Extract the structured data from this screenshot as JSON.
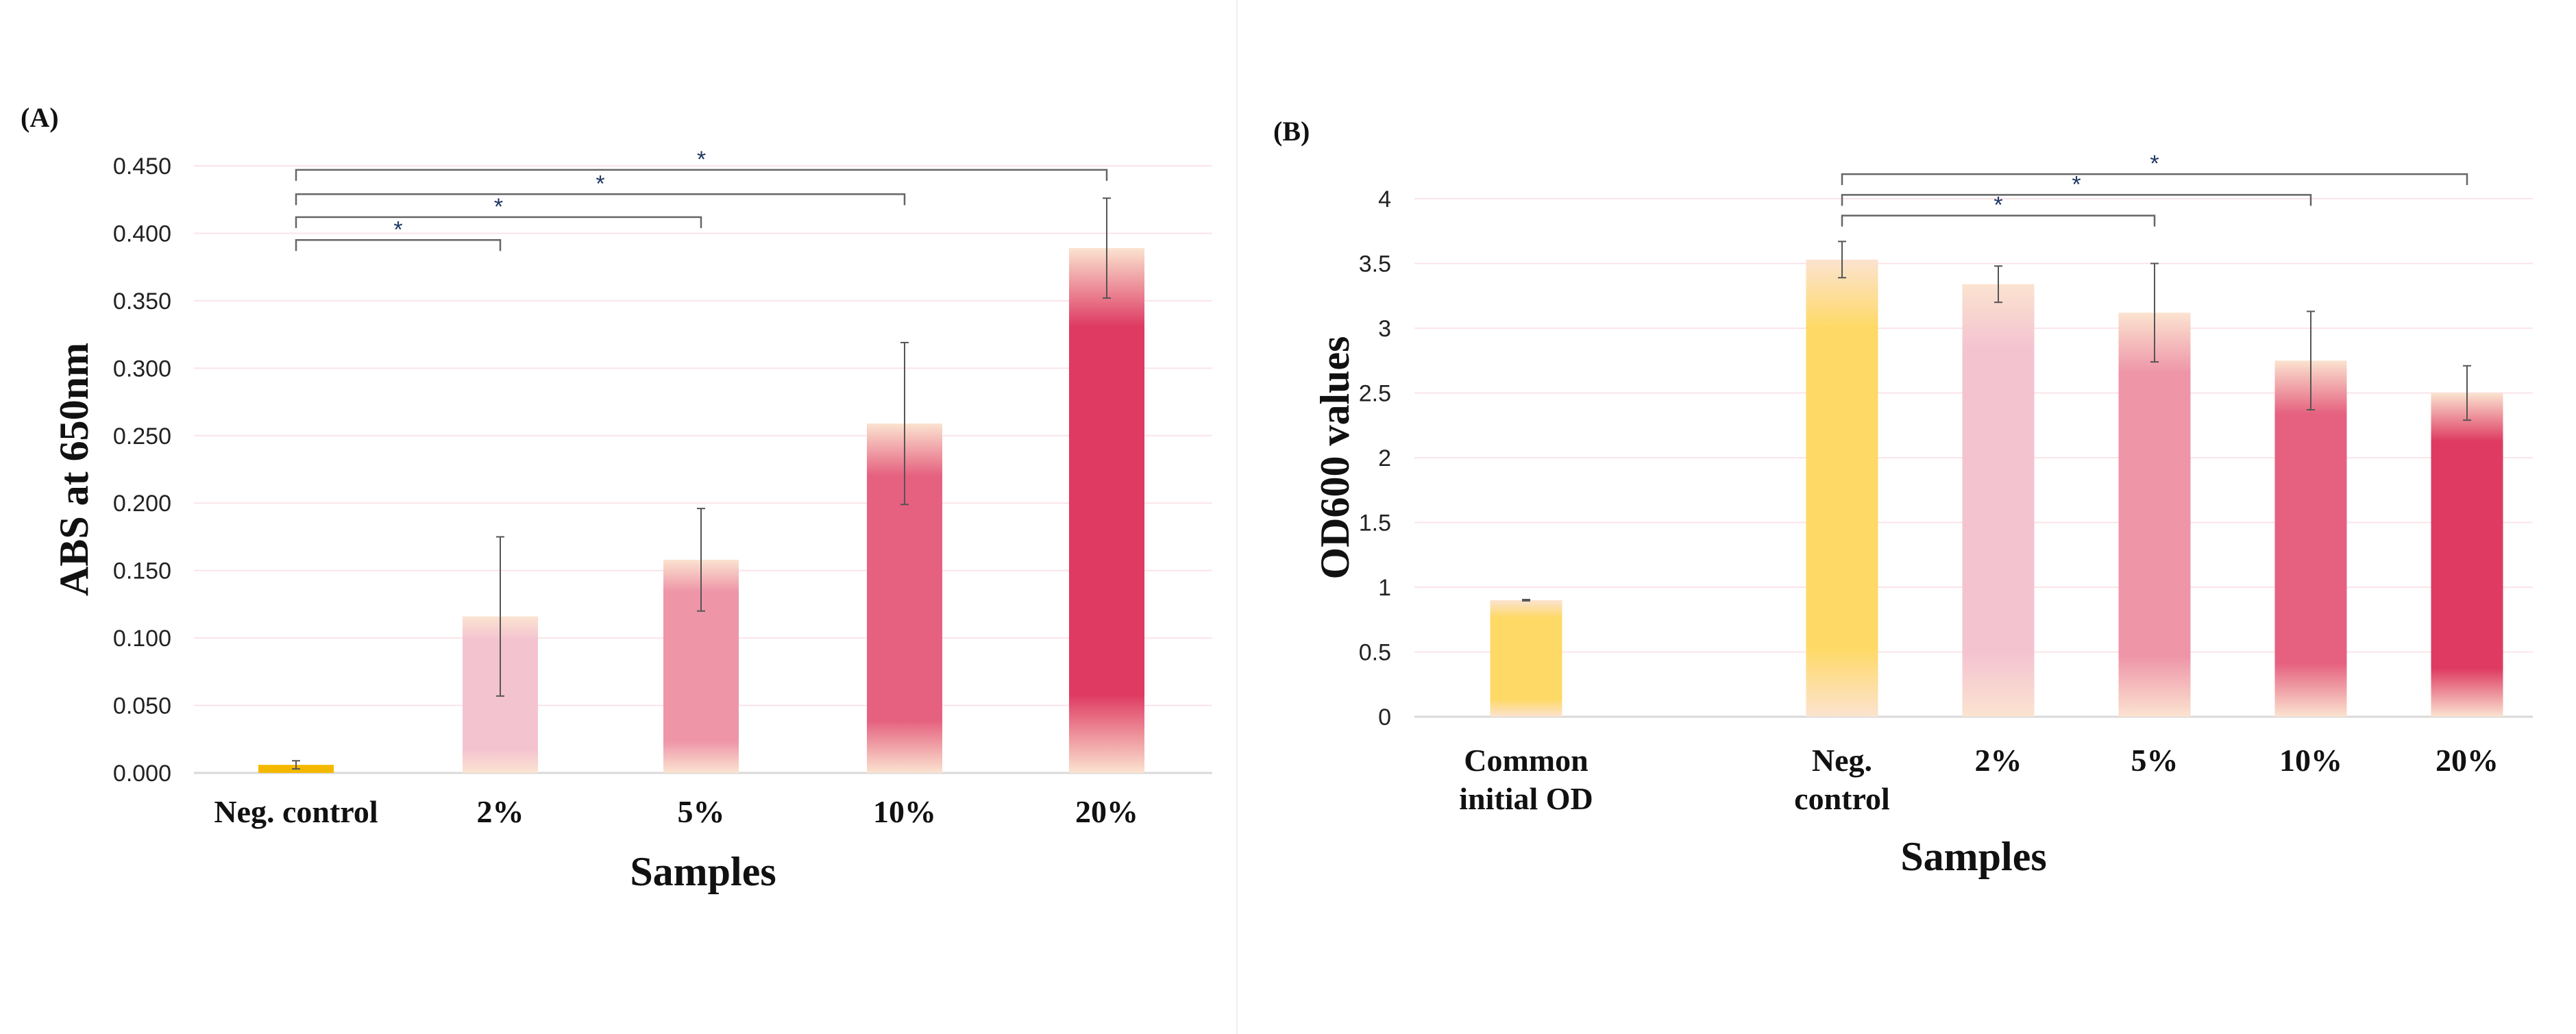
{
  "chart_data": [
    {
      "type": "bar",
      "panel_label": "(A)",
      "title": "",
      "xlabel": "Samples",
      "ylabel": "ABS at 650nm",
      "ylim": [
        0,
        0.45
      ],
      "yticks": [
        "0.000",
        "0.050",
        "0.100",
        "0.150",
        "0.200",
        "0.250",
        "0.300",
        "0.350",
        "0.400",
        "0.450"
      ],
      "categories": [
        [
          "Neg. control"
        ],
        [
          "2%"
        ],
        [
          "5%"
        ],
        [
          "10%"
        ],
        [
          "20%"
        ]
      ],
      "values": [
        0.006,
        0.116,
        0.158,
        0.259,
        0.389
      ],
      "errors": [
        0.003,
        0.059,
        0.038,
        0.06,
        0.037
      ],
      "colors": [
        "#F5B800",
        "#F4C3D0",
        "#EE95A8",
        "#E5617F",
        "#DE3A62"
      ],
      "significance": [
        {
          "from": 0,
          "to": 1,
          "label": "*",
          "level": 0.395
        },
        {
          "from": 0,
          "to": 2,
          "label": "*",
          "level": 0.412
        },
        {
          "from": 0,
          "to": 3,
          "label": "*",
          "level": 0.429
        },
        {
          "from": 0,
          "to": 4,
          "label": "*",
          "level": 0.447
        }
      ],
      "grid": true
    },
    {
      "type": "bar",
      "panel_label": "(B)",
      "title": "",
      "xlabel": "Samples",
      "ylabel": "OD600 values",
      "ylim": [
        0,
        4
      ],
      "yticks": [
        "0",
        "0.5",
        "1",
        "1.5",
        "2",
        "2.5",
        "3",
        "3.5",
        "4"
      ],
      "categories": [
        [
          "Common",
          "initial OD"
        ],
        [
          "Neg.",
          "control"
        ],
        [
          "2%"
        ],
        [
          "5%"
        ],
        [
          "10%"
        ],
        [
          "20%"
        ]
      ],
      "values": [
        0.9,
        3.53,
        3.34,
        3.12,
        2.75,
        2.5
      ],
      "errors": [
        0.005,
        0.14,
        0.14,
        0.38,
        0.38,
        0.21
      ],
      "colors": [
        "#FFD966",
        "#FFD966",
        "#F4C3D0",
        "#EE95A8",
        "#E5617F",
        "#DE3A62"
      ],
      "significance": [
        {
          "from": 1,
          "to": 3,
          "label": "*",
          "level": 3.87
        },
        {
          "from": 1,
          "to": 4,
          "label": "*",
          "level": 4.03
        },
        {
          "from": 1,
          "to": 5,
          "label": "*",
          "level": 4.19
        }
      ],
      "grid": true
    }
  ]
}
